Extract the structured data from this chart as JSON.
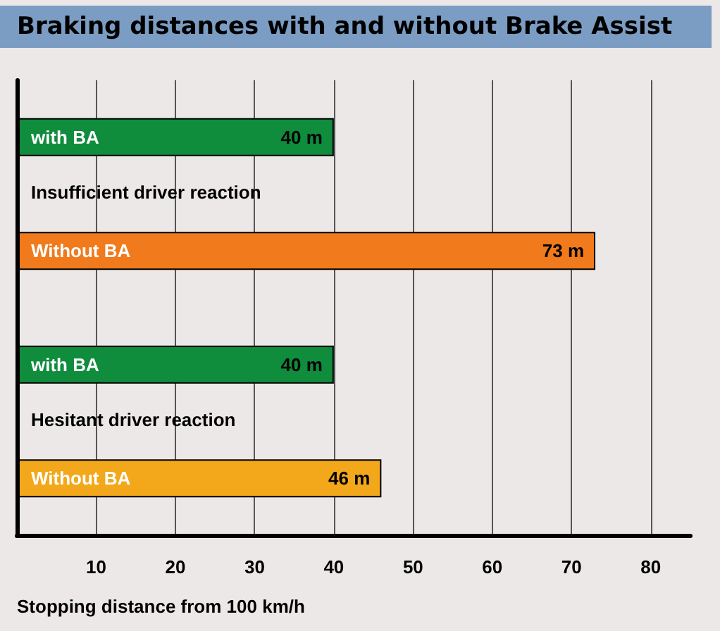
{
  "chart_data": {
    "type": "bar",
    "orientation": "horizontal",
    "title": "Braking distances with and without Brake Assist",
    "xlabel": "Stopping distance from 100 km/h",
    "categories": [
      "with BA",
      "Without BA",
      "with BA",
      "Without BA"
    ],
    "values": [
      40,
      73,
      40,
      46
    ],
    "colors": [
      "#0f8c3c",
      "#f07a1c",
      "#0f8c3c",
      "#f2a81a"
    ],
    "value_labels": [
      "40 m",
      "73 m",
      "40 m",
      "46 m"
    ],
    "annotations": [
      "Insufficient driver reaction",
      "Hesitant driver reaction"
    ],
    "xlim": [
      0,
      85
    ],
    "xticks": [
      10,
      20,
      30,
      40,
      50,
      60,
      70,
      80
    ],
    "grid": "x"
  }
}
